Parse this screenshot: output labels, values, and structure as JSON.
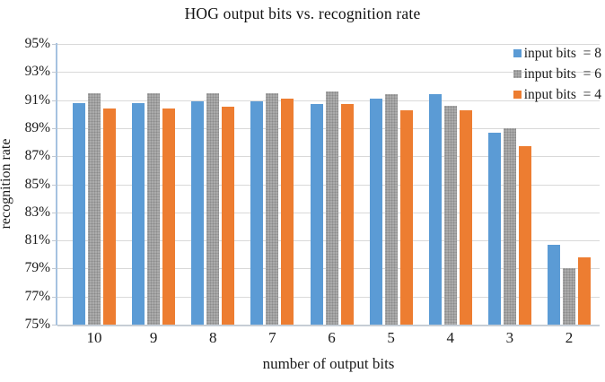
{
  "chart_data": {
    "type": "bar",
    "title": "HOG output bits vs. recognition rate",
    "xlabel": "number of output bits",
    "ylabel": "recognition rate",
    "categories": [
      "10",
      "9",
      "8",
      "7",
      "6",
      "5",
      "4",
      "3",
      "2"
    ],
    "series": [
      {
        "name": "input bits  = 8",
        "color": "#5B9BD5",
        "pattern": "solid",
        "values": [
          90.8,
          90.8,
          90.9,
          90.9,
          90.7,
          91.1,
          91.4,
          88.7,
          80.7
        ]
      },
      {
        "name": "input bits  = 6",
        "color": "#ABABAB",
        "pattern": "stipple",
        "values": [
          91.5,
          91.5,
          91.5,
          91.5,
          91.6,
          91.4,
          90.6,
          89.0,
          79.0
        ]
      },
      {
        "name": "input bits  = 4",
        "color": "#ED7D31",
        "pattern": "solid",
        "values": [
          90.4,
          90.4,
          90.5,
          91.1,
          90.7,
          90.3,
          90.3,
          87.7,
          79.8
        ]
      }
    ],
    "ylim": [
      75,
      95
    ],
    "ytick_step": 2,
    "yticks": [
      "95%",
      "93%",
      "91%",
      "89%",
      "87%",
      "85%",
      "83%",
      "81%",
      "79%",
      "77%",
      "75%"
    ],
    "grid": "horizontal",
    "legend_position": "top-right",
    "axis_color": "#A5C2E0",
    "grid_color": "#D9D9D9"
  }
}
